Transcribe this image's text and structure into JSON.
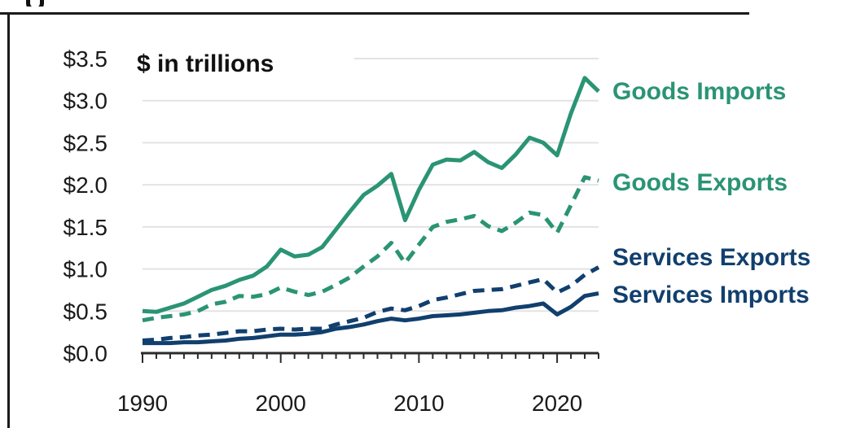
{
  "colors": {
    "goods": "#2a9474",
    "services": "#113f6e",
    "grid": "#e3e3e3",
    "axis": "#2b2b2b"
  },
  "chart_data": {
    "type": "line",
    "title": "",
    "unit_label": "$ in trillions",
    "xlabel": "",
    "ylabel": "",
    "xlim": [
      1990,
      2023
    ],
    "ylim": [
      0,
      3.5
    ],
    "grid": true,
    "legend": "inline-right",
    "x_ticks": [
      "1990",
      "2000",
      "2010",
      "2020"
    ],
    "y_ticks": [
      "$0.0",
      "$0.5",
      "$1.0",
      "$1.5",
      "$2.0",
      "$2.5",
      "$3.0",
      "$3.5"
    ],
    "x": [
      1990,
      1991,
      1992,
      1993,
      1994,
      1995,
      1996,
      1997,
      1998,
      1999,
      2000,
      2001,
      2002,
      2003,
      2004,
      2005,
      2006,
      2007,
      2008,
      2009,
      2010,
      2011,
      2012,
      2013,
      2014,
      2015,
      2016,
      2017,
      2018,
      2019,
      2020,
      2021,
      2022,
      2023
    ],
    "series": [
      {
        "name": "Goods Imports",
        "style": "solid",
        "color_key": "goods",
        "values": [
          0.5,
          0.49,
          0.54,
          0.59,
          0.67,
          0.75,
          0.8,
          0.87,
          0.92,
          1.03,
          1.23,
          1.15,
          1.17,
          1.26,
          1.47,
          1.68,
          1.88,
          1.99,
          2.13,
          1.58,
          1.94,
          2.24,
          2.3,
          2.29,
          2.39,
          2.27,
          2.2,
          2.36,
          2.56,
          2.5,
          2.35,
          2.85,
          3.27,
          3.11
        ]
      },
      {
        "name": "Goods Exports",
        "style": "dashed",
        "color_key": "goods",
        "values": [
          0.39,
          0.42,
          0.44,
          0.46,
          0.5,
          0.58,
          0.61,
          0.68,
          0.67,
          0.7,
          0.78,
          0.73,
          0.69,
          0.73,
          0.81,
          0.9,
          1.03,
          1.15,
          1.31,
          1.07,
          1.29,
          1.5,
          1.56,
          1.59,
          1.63,
          1.51,
          1.45,
          1.55,
          1.67,
          1.64,
          1.43,
          1.76,
          2.09,
          2.05
        ]
      },
      {
        "name": "Services Exports",
        "style": "dashed",
        "color_key": "services",
        "values": [
          0.15,
          0.16,
          0.18,
          0.19,
          0.21,
          0.22,
          0.24,
          0.26,
          0.26,
          0.28,
          0.29,
          0.28,
          0.29,
          0.29,
          0.34,
          0.38,
          0.42,
          0.49,
          0.53,
          0.51,
          0.56,
          0.63,
          0.66,
          0.7,
          0.74,
          0.75,
          0.76,
          0.8,
          0.84,
          0.88,
          0.72,
          0.8,
          0.93,
          1.02
        ]
      },
      {
        "name": "Services Imports",
        "style": "solid",
        "color_key": "services",
        "values": [
          0.12,
          0.12,
          0.12,
          0.13,
          0.13,
          0.14,
          0.15,
          0.17,
          0.18,
          0.2,
          0.22,
          0.22,
          0.23,
          0.25,
          0.29,
          0.31,
          0.34,
          0.38,
          0.41,
          0.39,
          0.41,
          0.44,
          0.45,
          0.46,
          0.48,
          0.5,
          0.51,
          0.54,
          0.56,
          0.59,
          0.46,
          0.55,
          0.68,
          0.71
        ]
      }
    ]
  }
}
